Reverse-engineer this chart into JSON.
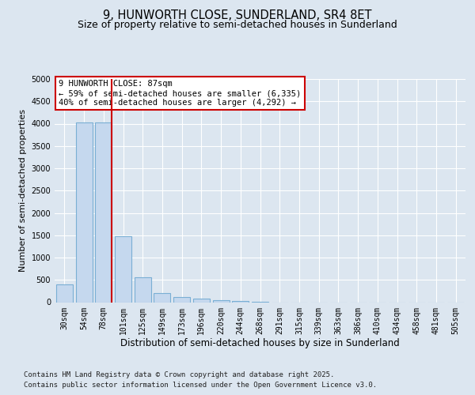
{
  "title": "9, HUNWORTH CLOSE, SUNDERLAND, SR4 8ET",
  "subtitle": "Size of property relative to semi-detached houses in Sunderland",
  "xlabel": "Distribution of semi-detached houses by size in Sunderland",
  "ylabel": "Number of semi-detached properties",
  "categories": [
    "30sqm",
    "54sqm",
    "78sqm",
    "101sqm",
    "125sqm",
    "149sqm",
    "173sqm",
    "196sqm",
    "220sqm",
    "244sqm",
    "268sqm",
    "291sqm",
    "315sqm",
    "339sqm",
    "363sqm",
    "386sqm",
    "410sqm",
    "434sqm",
    "458sqm",
    "481sqm",
    "505sqm"
  ],
  "values": [
    400,
    4020,
    4030,
    1470,
    560,
    200,
    110,
    75,
    50,
    25,
    5,
    0,
    0,
    0,
    0,
    0,
    0,
    0,
    0,
    0,
    0
  ],
  "bar_color": "#c5d8ee",
  "bar_edge_color": "#7aafd4",
  "vline_index": 2,
  "vline_color": "#cc0000",
  "annotation_line1": "9 HUNWORTH CLOSE: 87sqm",
  "annotation_line2": "← 59% of semi-detached houses are smaller (6,335)",
  "annotation_line3": "40% of semi-detached houses are larger (4,292) →",
  "annotation_box_fc": "#ffffff",
  "annotation_box_ec": "#cc0000",
  "ylim": [
    0,
    5000
  ],
  "yticks": [
    0,
    500,
    1000,
    1500,
    2000,
    2500,
    3000,
    3500,
    4000,
    4500,
    5000
  ],
  "background_color": "#dce6f0",
  "title_fontsize": 10.5,
  "subtitle_fontsize": 9,
  "ylabel_fontsize": 8,
  "xlabel_fontsize": 8.5,
  "tick_fontsize": 7,
  "annot_fontsize": 7.5,
  "footnote1": "Contains HM Land Registry data © Crown copyright and database right 2025.",
  "footnote2": "Contains public sector information licensed under the Open Government Licence v3.0.",
  "footnote_fontsize": 6.5
}
